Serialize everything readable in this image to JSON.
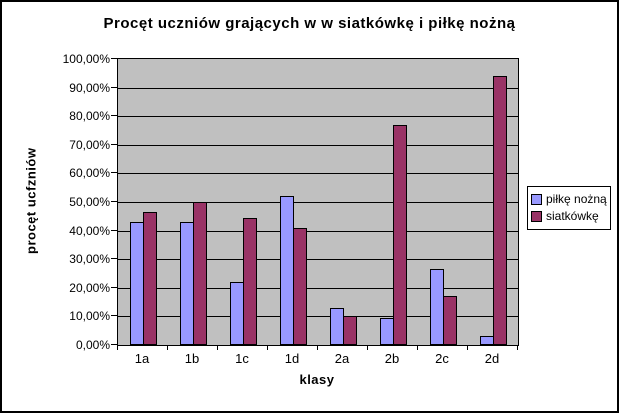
{
  "chart_data": {
    "type": "bar",
    "title": "Procęt uczniów grających w w siatkówkę i piłkę nożną",
    "xlabel": "klasy",
    "ylabel": "procęt ucfzniów",
    "categories": [
      "1a",
      "1b",
      "1c",
      "1d",
      "2a",
      "2b",
      "2c",
      "2d"
    ],
    "series": [
      {
        "name": "piłkę nożną",
        "color": "#9999FF",
        "values": [
          43,
          43,
          22,
          52,
          13,
          9.5,
          26.5,
          3
        ]
      },
      {
        "name": "siatkówkę",
        "color": "#993366",
        "values": [
          46.5,
          50,
          44.5,
          41,
          10,
          77,
          17,
          94
        ]
      }
    ],
    "ylim": [
      0,
      100
    ],
    "y_ticks": [
      {
        "label": "100,00%",
        "value": 100
      },
      {
        "label": "90,00%",
        "value": 90
      },
      {
        "label": "80,00%",
        "value": 80
      },
      {
        "label": "70,00%",
        "value": 70
      },
      {
        "label": "60,00%",
        "value": 60
      },
      {
        "label": "50,00%",
        "value": 50
      },
      {
        "label": "40,00%",
        "value": 40
      },
      {
        "label": "30,00%",
        "value": 30
      },
      {
        "label": "20,00%",
        "value": 20
      },
      {
        "label": "10,00%",
        "value": 10
      },
      {
        "label": "0,00%",
        "value": 0
      }
    ],
    "grid": true,
    "legend_position": "right",
    "plot_background": "#C0C0C0",
    "bar_border_color": "#000000"
  }
}
